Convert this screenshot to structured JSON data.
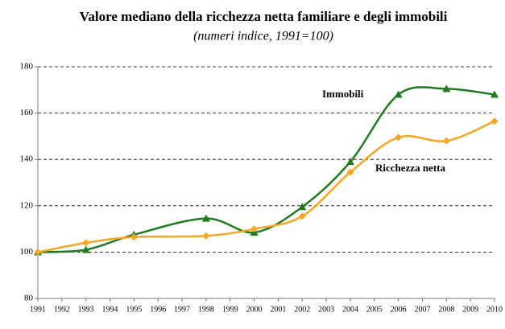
{
  "chart_data": {
    "type": "line",
    "title": "Valore mediano della ricchezza netta familiare e degli immobili",
    "subtitle": "(numeri indice, 1991=100)",
    "x": [
      1991,
      1993,
      1995,
      1998,
      2000,
      2002,
      2004,
      2006,
      2008,
      2010
    ],
    "series": [
      {
        "name": "Immobili",
        "color": "#1e7b1e",
        "marker": "triangle",
        "values": [
          100,
          101,
          107.5,
          114.5,
          108.5,
          119.5,
          139,
          168,
          170.5,
          168
        ]
      },
      {
        "name": "Ricchezza netta",
        "color": "#f5a623",
        "marker": "diamond",
        "values": [
          100,
          104,
          106.5,
          107,
          110,
          115.5,
          134.5,
          149.5,
          148,
          156.5
        ]
      }
    ],
    "xlim": [
      1991,
      2010
    ],
    "xticks": [
      1991,
      1992,
      1993,
      1994,
      1995,
      1996,
      1997,
      1998,
      1999,
      2000,
      2001,
      2002,
      2003,
      2004,
      2005,
      2006,
      2007,
      2008,
      2009,
      2010
    ],
    "ylim": [
      80,
      180
    ],
    "yticks": [
      80,
      100,
      120,
      140,
      160,
      180
    ],
    "grid": true
  }
}
